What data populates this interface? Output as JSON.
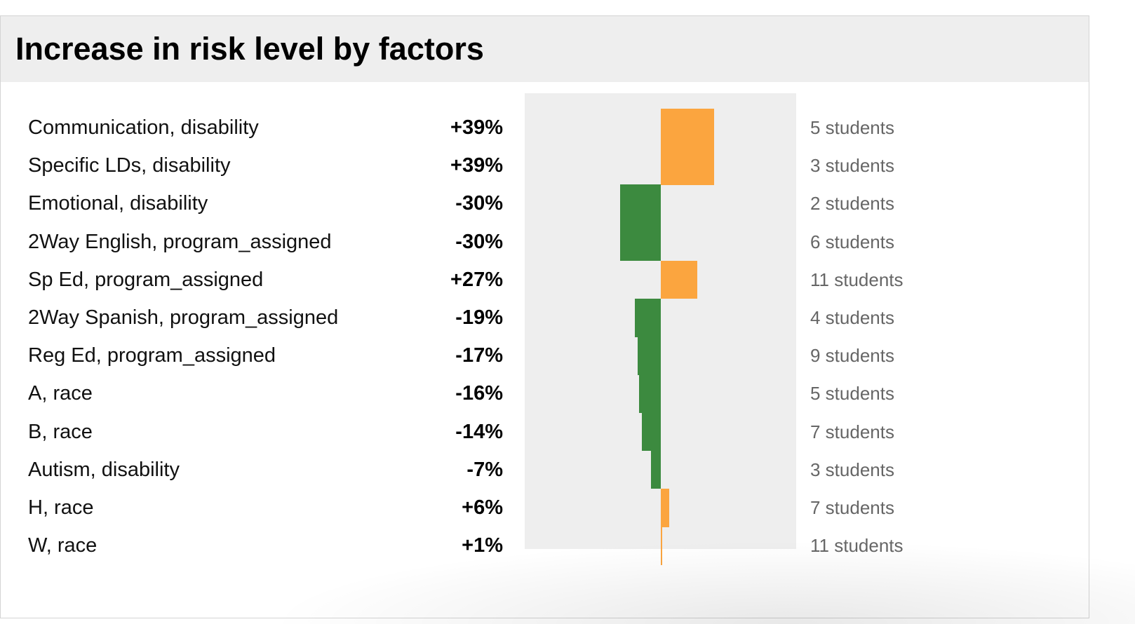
{
  "panel": {
    "title": "Increase in risk level by factors"
  },
  "colors": {
    "increase": "#fba53f",
    "decrease": "#3c8a3f",
    "chart_bg": "#eeeeee",
    "header_bg": "#eeeeee"
  },
  "chart_data": {
    "type": "bar",
    "orientation": "horizontal-diverging",
    "title": "Increase in risk level by factors",
    "categories": [
      "Communication, disability",
      "Specific LDs, disability",
      "Emotional, disability",
      "2Way English, program_assigned",
      "Sp Ed, program_assigned",
      "2Way Spanish, program_assigned",
      "Reg Ed, program_assigned",
      "A, race",
      "B, race",
      "Autism, disability",
      "H, race",
      "W, race"
    ],
    "value_labels": [
      "+39%",
      "+39%",
      "-30%",
      "-30%",
      "+27%",
      "-19%",
      "-17%",
      "-16%",
      "-14%",
      "-7%",
      "+6%",
      "+1%"
    ],
    "values": [
      39,
      39,
      -30,
      -30,
      27,
      -19,
      -17,
      -16,
      -14,
      -7,
      6,
      1
    ],
    "counts": [
      "5 students",
      "3 students",
      "2 students",
      "6 students",
      "11 students",
      "4 students",
      "9 students",
      "5 students",
      "7 students",
      "3 students",
      "7 students",
      "11 students"
    ],
    "xlim": [
      -100,
      100
    ]
  }
}
